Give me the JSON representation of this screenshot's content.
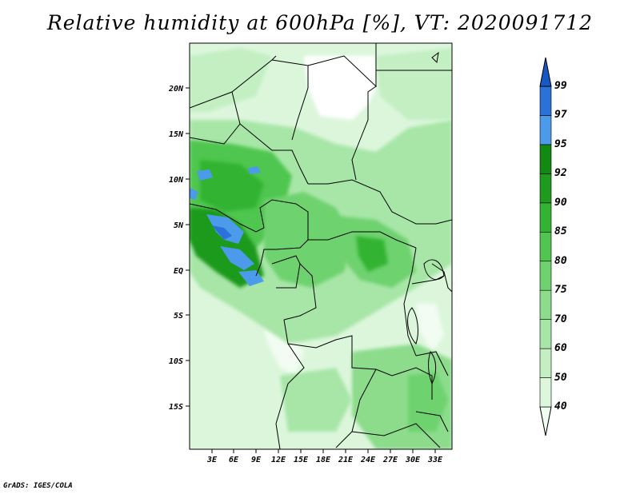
{
  "title": "Relative humidity at 600hPa [%], VT: 2020091712",
  "footer": "GrADS: IGES/COLA",
  "lat_ticks": [
    "20N",
    "15N",
    "10N",
    "5N",
    "EQ",
    "5S",
    "10S",
    "15S"
  ],
  "lon_ticks": [
    "3E",
    "6E",
    "9E",
    "12E",
    "15E",
    "18E",
    "21E",
    "24E",
    "27E",
    "30E",
    "33E"
  ],
  "colorbar": {
    "levels": [
      "40",
      "50",
      "60",
      "70",
      "75",
      "80",
      "85",
      "90",
      "92",
      "95",
      "97",
      "99"
    ],
    "colors": [
      "#f0fff0",
      "#dcf7dc",
      "#c3efc3",
      "#a7e6a7",
      "#8cdc8c",
      "#6ed26e",
      "#50c650",
      "#32b432",
      "#1e9a1e",
      "#128a12",
      "#4b9bea",
      "#2b72d8",
      "#1858c4"
    ]
  }
}
